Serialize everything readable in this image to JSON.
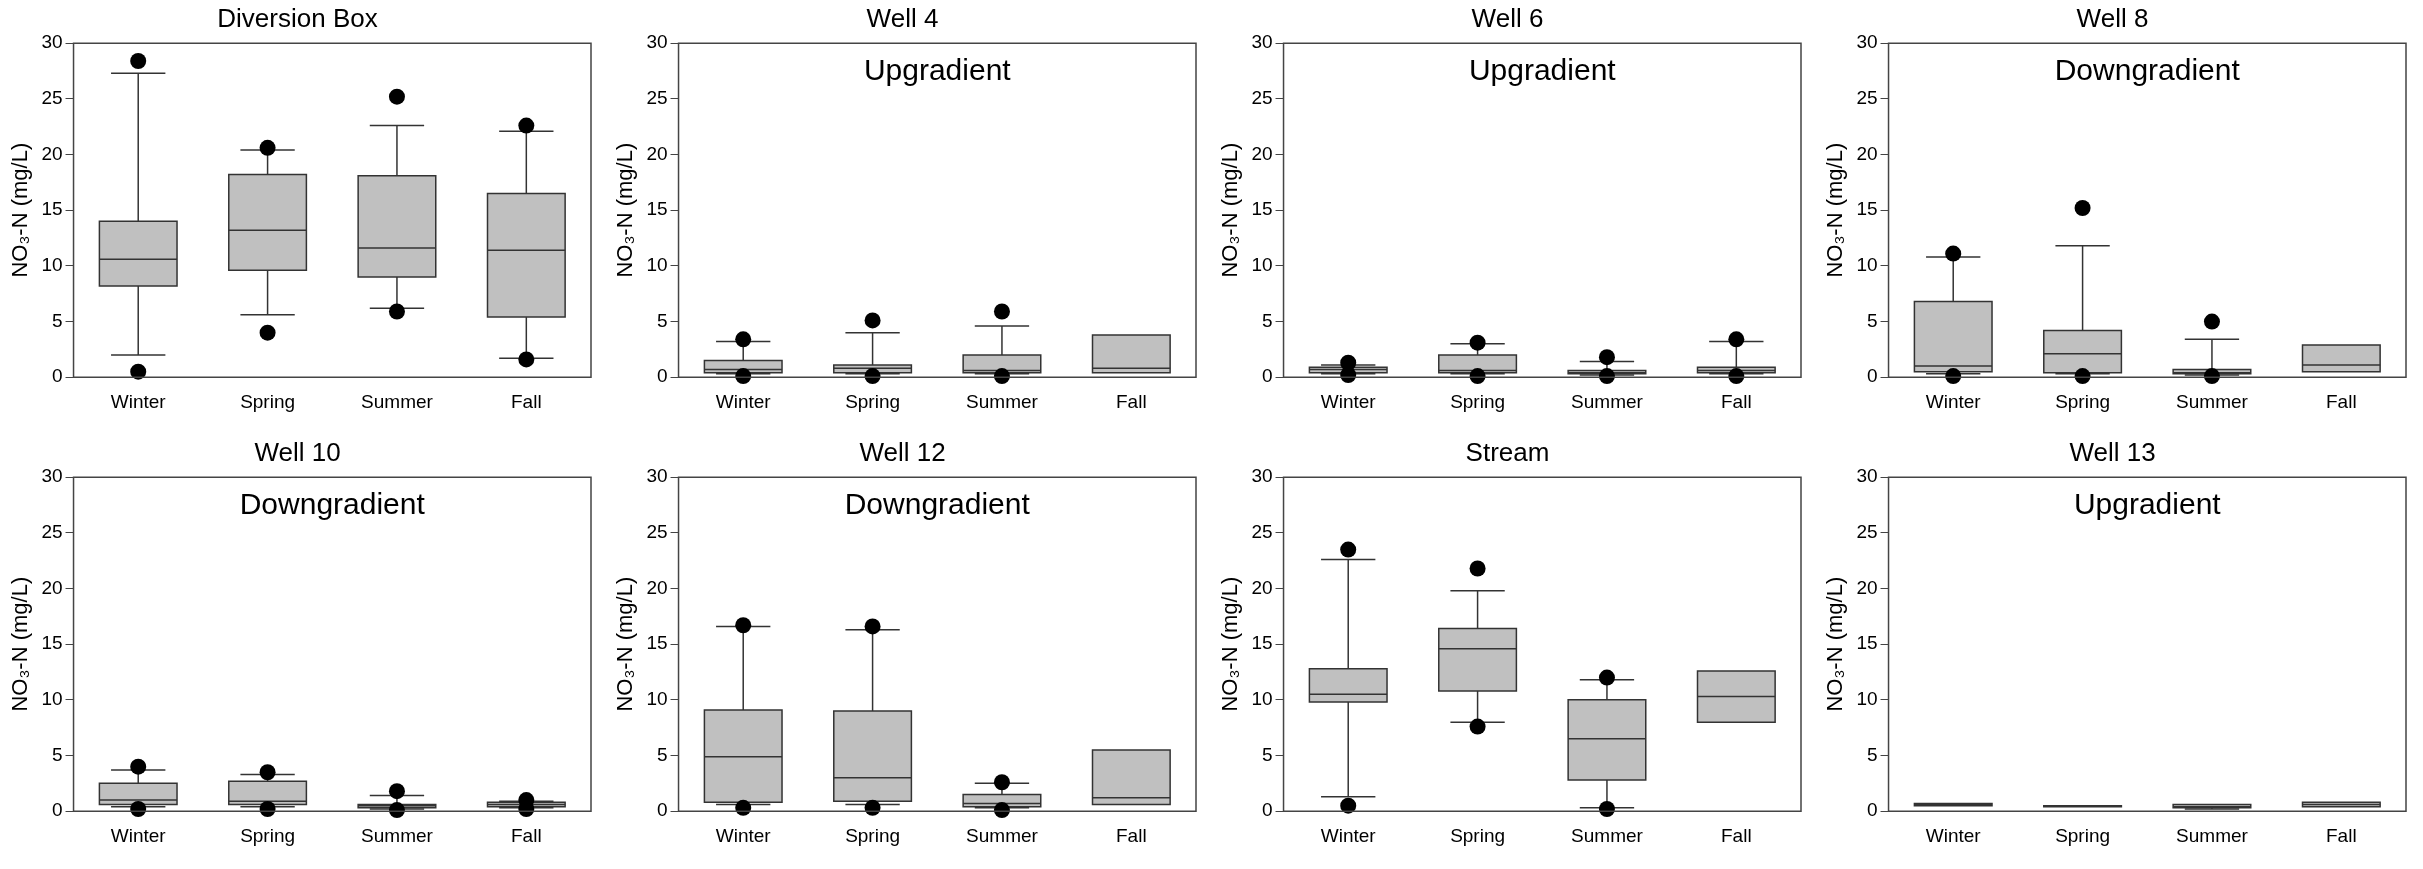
{
  "chart_data": [
    {
      "type": "box",
      "title": "Diversion Box",
      "ylabel": "NO₃-N (mg/L)",
      "categories": [
        "Winter",
        "Spring",
        "Summer",
        "Fall"
      ],
      "color": "#c0c0c0",
      "ylim": [
        0,
        30
      ],
      "yticks": [
        0,
        5,
        10,
        15,
        20,
        25,
        30
      ],
      "boxes": [
        {
          "low": 2,
          "q1": 8.2,
          "median": 10.6,
          "q3": 14,
          "high": 27.3,
          "outliers": [
            28.4,
            0.5
          ]
        },
        {
          "low": 5.6,
          "q1": 9.6,
          "median": 13.2,
          "q3": 18.2,
          "high": 20.4,
          "outliers": [
            20.6,
            4
          ]
        },
        {
          "low": 6.2,
          "q1": 9,
          "median": 11.6,
          "q3": 18.1,
          "high": 22.6,
          "outliers": [
            25.2,
            5.9
          ]
        },
        {
          "low": 1.7,
          "q1": 5.4,
          "median": 11.4,
          "q3": 16.5,
          "high": 22.1,
          "outliers": [
            22.6,
            1.6
          ]
        }
      ]
    },
    {
      "type": "box",
      "title": "Well 4",
      "ylabel": "NO₃-N (mg/L)",
      "categories": [
        "Winter",
        "Spring",
        "Summer",
        "Fall"
      ],
      "color": "#c0c0c0",
      "ylim": [
        0,
        30
      ],
      "yticks": [
        0,
        5,
        10,
        15,
        20,
        25,
        30
      ],
      "annotations": [
        "Upgradient"
      ],
      "boxes": [
        {
          "low": 0.3,
          "q1": 0.4,
          "median": 0.7,
          "q3": 1.5,
          "high": 3.2,
          "outliers": [
            3.4,
            0.1
          ]
        },
        {
          "low": 0.3,
          "q1": 0.4,
          "median": 0.8,
          "q3": 1.1,
          "high": 4,
          "outliers": [
            5.1,
            0.1
          ]
        },
        {
          "low": 0.3,
          "q1": 0.4,
          "median": 0.6,
          "q3": 2,
          "high": 4.6,
          "outliers": [
            5.9,
            0.1
          ]
        },
        {
          "low": 0.4,
          "q1": 0.4,
          "median": 0.8,
          "q3": 3.8,
          "high": 3.8
        }
      ]
    },
    {
      "type": "box",
      "title": "Well 6",
      "ylabel": "NO₃-N (mg/L)",
      "categories": [
        "Winter",
        "Spring",
        "Summer",
        "Fall"
      ],
      "color": "#c0c0c0",
      "ylim": [
        0,
        30
      ],
      "yticks": [
        0,
        5,
        10,
        15,
        20,
        25,
        30
      ],
      "annotations": [
        "Upgradient"
      ],
      "boxes": [
        {
          "low": 0.3,
          "q1": 0.4,
          "median": 0.7,
          "q3": 0.9,
          "high": 1.1,
          "outliers": [
            1.3,
            0.2
          ]
        },
        {
          "low": 0.3,
          "q1": 0.4,
          "median": 0.6,
          "q3": 2,
          "high": 3,
          "outliers": [
            3.1,
            0.1
          ]
        },
        {
          "low": 0.2,
          "q1": 0.3,
          "median": 0.4,
          "q3": 0.6,
          "high": 1.4,
          "outliers": [
            1.8,
            0.1
          ]
        },
        {
          "low": 0.3,
          "q1": 0.4,
          "median": 0.6,
          "q3": 0.9,
          "high": 3.2,
          "outliers": [
            3.4,
            0.1
          ]
        }
      ]
    },
    {
      "type": "box",
      "title": "Well 8",
      "ylabel": "NO₃-N (mg/L)",
      "categories": [
        "Winter",
        "Spring",
        "Summer",
        "Fall"
      ],
      "color": "#c0c0c0",
      "ylim": [
        0,
        30
      ],
      "yticks": [
        0,
        5,
        10,
        15,
        20,
        25,
        30
      ],
      "annotations": [
        "Downgradient"
      ],
      "boxes": [
        {
          "low": 0.3,
          "q1": 0.5,
          "median": 1,
          "q3": 6.8,
          "high": 10.8,
          "outliers": [
            11.1,
            0.1
          ]
        },
        {
          "low": 0.3,
          "q1": 0.4,
          "median": 2.1,
          "q3": 4.2,
          "high": 11.8,
          "outliers": [
            15.2,
            0.1
          ]
        },
        {
          "low": 0.2,
          "q1": 0.3,
          "median": 0.4,
          "q3": 0.7,
          "high": 3.4,
          "outliers": [
            5,
            0.1
          ]
        },
        {
          "low": 0.5,
          "q1": 0.5,
          "median": 1.1,
          "q3": 2.9,
          "high": 2.9
        }
      ]
    },
    {
      "type": "box",
      "title": "Well 10",
      "ylabel": "NO₃-N (mg/L)",
      "categories": [
        "Winter",
        "Spring",
        "Summer",
        "Fall"
      ],
      "color": "#c0c0c0",
      "ylim": [
        0,
        30
      ],
      "yticks": [
        0,
        5,
        10,
        15,
        20,
        25,
        30
      ],
      "annotations": [
        "Downgradient"
      ],
      "boxes": [
        {
          "low": 0.4,
          "q1": 0.6,
          "median": 1,
          "q3": 2.5,
          "high": 3.7,
          "outliers": [
            4,
            0.2
          ]
        },
        {
          "low": 0.4,
          "q1": 0.6,
          "median": 0.9,
          "q3": 2.7,
          "high": 3.3,
          "outliers": [
            3.5,
            0.2
          ]
        },
        {
          "low": 0.2,
          "q1": 0.3,
          "median": 0.5,
          "q3": 0.6,
          "high": 1.4,
          "outliers": [
            1.8,
            0.1
          ]
        },
        {
          "low": 0.3,
          "q1": 0.4,
          "median": 0.6,
          "q3": 0.8,
          "high": 0.9,
          "outliers": [
            1,
            0.2
          ]
        }
      ]
    },
    {
      "type": "box",
      "title": "Well 12",
      "ylabel": "NO₃-N (mg/L)",
      "categories": [
        "Winter",
        "Spring",
        "Summer",
        "Fall"
      ],
      "color": "#c0c0c0",
      "ylim": [
        0,
        30
      ],
      "yticks": [
        0,
        5,
        10,
        15,
        20,
        25,
        30
      ],
      "annotations": [
        "Downgradient"
      ],
      "boxes": [
        {
          "low": 0.6,
          "q1": 0.8,
          "median": 4.9,
          "q3": 9.1,
          "high": 16.6,
          "outliers": [
            16.7,
            0.3
          ]
        },
        {
          "low": 0.6,
          "q1": 0.9,
          "median": 3,
          "q3": 9,
          "high": 16.3,
          "outliers": [
            16.6,
            0.3
          ]
        },
        {
          "low": 0.3,
          "q1": 0.4,
          "median": 0.7,
          "q3": 1.5,
          "high": 2.5,
          "outliers": [
            2.6,
            0.1
          ]
        },
        {
          "low": 0.6,
          "q1": 0.6,
          "median": 1.2,
          "q3": 5.5,
          "high": 5.5
        }
      ]
    },
    {
      "type": "box",
      "title": "Stream",
      "ylabel": "NO₃-N (mg/L)",
      "categories": [
        "Winter",
        "Spring",
        "Summer",
        "Fall"
      ],
      "color": "#c0c0c0",
      "ylim": [
        0,
        30
      ],
      "yticks": [
        0,
        5,
        10,
        15,
        20,
        25,
        30
      ],
      "boxes": [
        {
          "low": 1.3,
          "q1": 9.8,
          "median": 10.5,
          "q3": 12.8,
          "high": 22.6,
          "outliers": [
            23.5,
            0.5
          ]
        },
        {
          "low": 8,
          "q1": 10.8,
          "median": 14.6,
          "q3": 16.4,
          "high": 19.8,
          "outliers": [
            21.8,
            7.6
          ]
        },
        {
          "low": 0.3,
          "q1": 2.8,
          "median": 6.5,
          "q3": 10,
          "high": 11.8,
          "outliers": [
            12,
            0.2
          ]
        },
        {
          "low": 8,
          "q1": 8,
          "median": 10.3,
          "q3": 12.6,
          "high": 12.6
        }
      ]
    },
    {
      "type": "box",
      "title": "Well 13",
      "ylabel": "NO₃-N (mg/L)",
      "categories": [
        "Winter",
        "Spring",
        "Summer",
        "Fall"
      ],
      "color": "#c0c0c0",
      "ylim": [
        0,
        30
      ],
      "yticks": [
        0,
        5,
        10,
        15,
        20,
        25,
        30
      ],
      "annotations": [
        "Upgradient"
      ],
      "boxes": [
        {
          "low": 0.5,
          "q1": 0.5,
          "median": 0.6,
          "q3": 0.7,
          "high": 0.7
        },
        {
          "low": 0.4,
          "q1": 0.4,
          "median": 0.45,
          "q3": 0.5,
          "high": 0.5
        },
        {
          "low": 0.2,
          "q1": 0.3,
          "median": 0.4,
          "q3": 0.6,
          "high": 0.6
        },
        {
          "low": 0.4,
          "q1": 0.4,
          "median": 0.6,
          "q3": 0.8,
          "high": 0.8
        }
      ]
    }
  ]
}
